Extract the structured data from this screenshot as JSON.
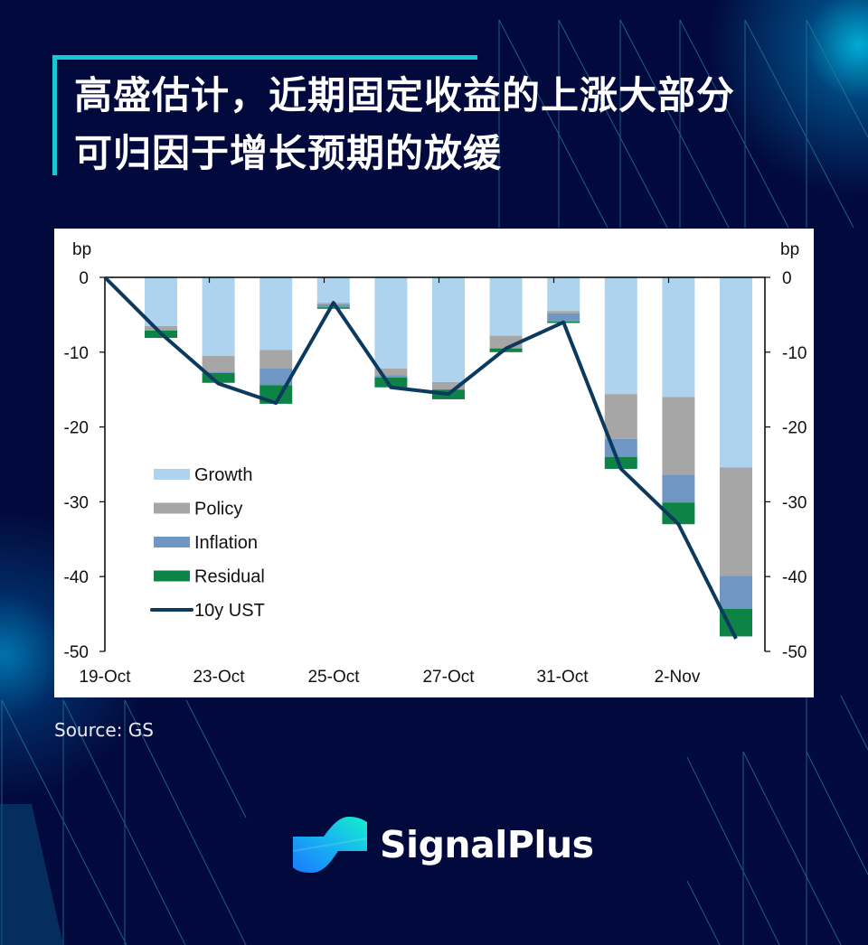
{
  "title": {
    "line1": "高盛估计，近期固定收益的上涨大部分",
    "line2": "可归因于增长预期的放缓"
  },
  "source": "Source: GS",
  "brand": {
    "name": "SignalPlus"
  },
  "colors": {
    "background": "#020a3d",
    "accent": "#19c6d1",
    "growth": "#aed3ee",
    "policy": "#a6a6a6",
    "inflation": "#7097c3",
    "residual": "#0d8446",
    "line": "#0c3a5e"
  },
  "chart_data": {
    "type": "bar",
    "subtype": "stacked bar with line overlay",
    "title": "",
    "ylabel_left": "bp",
    "ylabel_right": "bp",
    "ylim": [
      -50,
      0
    ],
    "yticks": [
      0,
      -10,
      -20,
      -30,
      -40,
      -50
    ],
    "x_tick_labels": [
      "19-Oct",
      "23-Oct",
      "25-Oct",
      "27-Oct",
      "31-Oct",
      "2-Nov"
    ],
    "grid": false,
    "legend_position": "inside left",
    "legend": [
      "Growth",
      "Policy",
      "Inflation",
      "Residual",
      "10y UST"
    ],
    "categories": [
      "b1",
      "b2",
      "b3",
      "b4",
      "b5",
      "b6",
      "b7",
      "b8",
      "b9",
      "b10",
      "b11"
    ],
    "series": [
      {
        "name": "Growth",
        "kind": "bar",
        "values": [
          -6.5,
          -10.5,
          -9.7,
          -3.4,
          -12.2,
          -14.0,
          -7.8,
          -4.5,
          -15.6,
          -16.0,
          -25.4
        ]
      },
      {
        "name": "Policy",
        "kind": "bar",
        "values": [
          -0.6,
          -2.1,
          -2.5,
          -0.2,
          -0.9,
          -1.0,
          -1.7,
          -0.3,
          -6.0,
          -10.4,
          -14.5
        ]
      },
      {
        "name": "Inflation",
        "kind": "bar",
        "values": [
          0.0,
          -0.2,
          -2.2,
          -0.4,
          -0.3,
          0.0,
          0.0,
          -1.1,
          -2.4,
          -3.7,
          -4.4
        ]
      },
      {
        "name": "Residual",
        "kind": "bar",
        "values": [
          -1.0,
          -1.3,
          -2.5,
          -0.2,
          -1.3,
          -1.3,
          -0.5,
          -0.2,
          -1.6,
          -2.9,
          -3.7
        ]
      },
      {
        "name": "10y UST",
        "kind": "line",
        "start": 0,
        "values": [
          -7.5,
          -14.2,
          -16.8,
          -3.4,
          -14.7,
          -15.6,
          -9.5,
          -6.0,
          -25.6,
          -33.0,
          -48.3
        ]
      }
    ]
  }
}
